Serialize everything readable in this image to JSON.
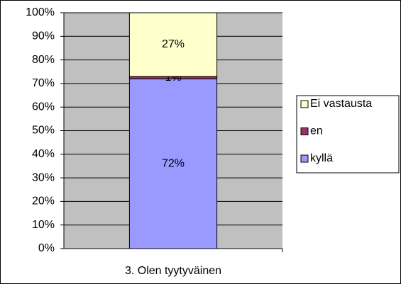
{
  "chart_data": {
    "type": "stacked_bar",
    "categories": [
      "3.  Olen tyytyväinen"
    ],
    "series": [
      {
        "name": "kyllä",
        "color": "#9999ff",
        "values": [
          72
        ],
        "value_labels": [
          "72%"
        ]
      },
      {
        "name": "en",
        "color": "#993366",
        "values": [
          1
        ],
        "value_labels": [
          "1%"
        ]
      },
      {
        "name": "Ei vastausta",
        "color": "#ffffcc",
        "values": [
          27
        ],
        "value_labels": [
          "27%"
        ]
      }
    ],
    "ylim": [
      0,
      100
    ],
    "yticks": [
      {
        "value": 0,
        "label": "0%"
      },
      {
        "value": 10,
        "label": "10%"
      },
      {
        "value": 20,
        "label": "20%"
      },
      {
        "value": 30,
        "label": "30%"
      },
      {
        "value": 40,
        "label": "40%"
      },
      {
        "value": 50,
        "label": "50%"
      },
      {
        "value": 60,
        "label": "60%"
      },
      {
        "value": 70,
        "label": "70%"
      },
      {
        "value": 80,
        "label": "80%"
      },
      {
        "value": 90,
        "label": "90%"
      },
      {
        "value": 100,
        "label": "100%"
      }
    ],
    "grid": true,
    "plot_background": "#c0c0c0",
    "legend": "right"
  }
}
